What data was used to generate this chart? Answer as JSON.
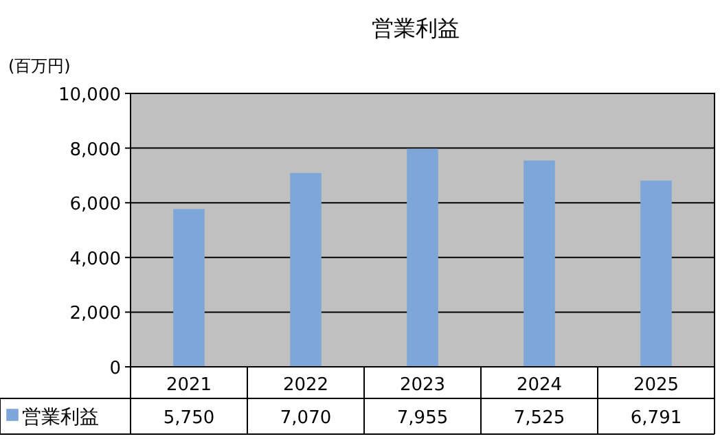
{
  "chart_data": {
    "type": "bar",
    "title": "営業利益",
    "ylabel": "(百万円)",
    "categories": [
      "2021",
      "2022",
      "2023",
      "2024",
      "2025"
    ],
    "series": [
      {
        "name": "営業利益",
        "color": "#7da7d9",
        "values": [
          5750,
          7070,
          7955,
          7525,
          6791
        ],
        "value_labels": [
          "5,750",
          "7,070",
          "7,955",
          "7,525",
          "6,791"
        ]
      }
    ],
    "ylim": [
      0,
      10000
    ],
    "yticks": [
      0,
      {
        "value": 2000,
        "label": "2,000"
      },
      {
        "value": 4000,
        "label": "4,000"
      },
      {
        "value": 6000,
        "label": "6,000"
      },
      {
        "value": 8000,
        "label": "8,000"
      },
      {
        "value": 10000,
        "label": "10,000"
      }
    ],
    "grid": "y",
    "legend": "bottom"
  }
}
